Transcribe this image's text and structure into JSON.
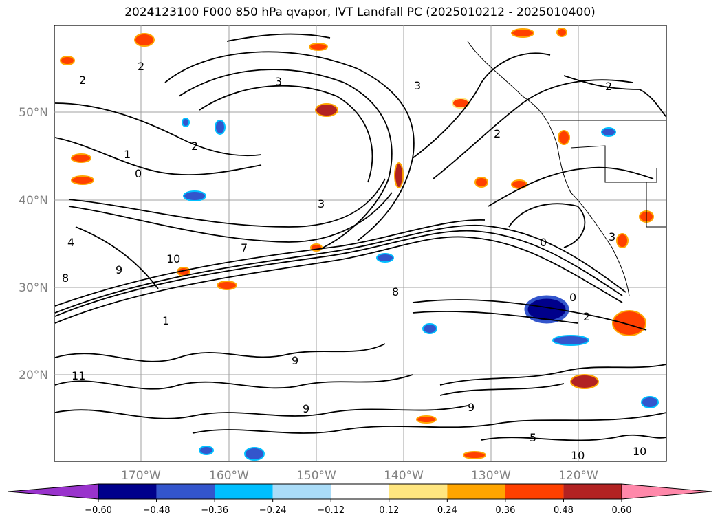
{
  "title": "2024123100 F000 850 hPa qvapor, IVT Landfall PC (2025010212 - 2025010400)",
  "map": {
    "lat_labels": [
      "50°N",
      "40°N",
      "30°N",
      "20°N"
    ],
    "lon_labels": [
      "170°W",
      "160°W",
      "150°W",
      "140°W",
      "130°W",
      "120°W"
    ],
    "contour_labels": [
      "2",
      "2",
      "2",
      "3",
      "3",
      "3",
      "2",
      "2",
      "1",
      "0",
      "3",
      "4",
      "9",
      "10",
      "9",
      "8",
      "1",
      "7",
      "8",
      "0",
      "2",
      "0",
      "11",
      "9",
      "9",
      "10",
      "10",
      "5"
    ]
  },
  "colorbar": {
    "tick_labels": [
      "−0.60",
      "−0.48",
      "−0.36",
      "−0.24",
      "−0.12",
      "0.12",
      "0.24",
      "0.36",
      "0.48",
      "0.60"
    ],
    "colors": [
      "#9933cc",
      "#00008b",
      "#3355cc",
      "#00bfff",
      "#aadcf8",
      "#ffffff",
      "#ffe680",
      "#ffa500",
      "#ff4000",
      "#b22222",
      "#ff88aa"
    ]
  }
}
